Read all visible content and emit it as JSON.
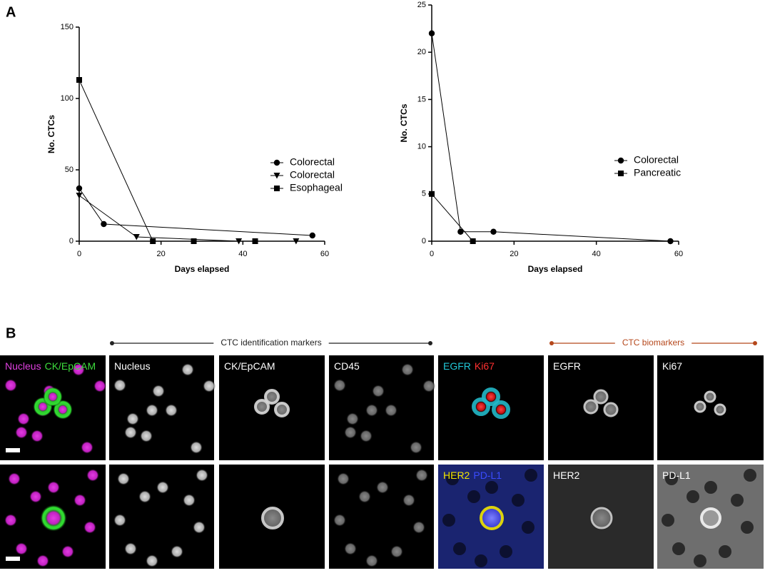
{
  "panel_labels": [
    "A",
    "B"
  ],
  "chart_data": [
    {
      "type": "line",
      "xlabel": "Days elapsed",
      "ylabel": "No. CTCs",
      "xlim": [
        0,
        60
      ],
      "xticks": [
        0,
        20,
        40,
        60
      ],
      "ylim": [
        0,
        150
      ],
      "yticks": [
        0,
        50,
        100,
        150
      ],
      "legend": "right",
      "series": [
        {
          "name": "Colorectal",
          "marker": "circle",
          "color": "#000000",
          "x": [
            0,
            6,
            57
          ],
          "values": [
            37,
            12,
            4
          ]
        },
        {
          "name": "Colorectal",
          "marker": "triangle",
          "color": "#000000",
          "x": [
            0,
            14,
            39,
            53
          ],
          "values": [
            32,
            3,
            0,
            0
          ]
        },
        {
          "name": "Esophageal",
          "marker": "square",
          "color": "#000000",
          "x": [
            0,
            18,
            28,
            43
          ],
          "values": [
            113,
            0,
            0,
            0
          ]
        }
      ]
    },
    {
      "type": "line",
      "xlabel": "Days elapsed",
      "ylabel": "No. CTCs",
      "xlim": [
        0,
        60
      ],
      "xticks": [
        0,
        20,
        40,
        60
      ],
      "ylim": [
        0,
        25
      ],
      "yticks": [
        0,
        5,
        10,
        15,
        20,
        25
      ],
      "legend": "right",
      "series": [
        {
          "name": "Colorectal",
          "marker": "circle",
          "color": "#000000",
          "x": [
            0,
            7,
            15,
            58
          ],
          "values": [
            22,
            1,
            1,
            0
          ]
        },
        {
          "name": "Pancreatic",
          "marker": "square",
          "color": "#000000",
          "x": [
            0,
            10
          ],
          "values": [
            5,
            0
          ]
        }
      ]
    }
  ],
  "panel_b": {
    "brackets": [
      {
        "label": "CTC identification markers",
        "color": "#222222"
      },
      {
        "label": "CTC biomarkers",
        "color": "#b5471b"
      }
    ],
    "rows": [
      [
        {
          "labels": [
            {
              "text": "Nucleus",
              "color": "#e040e0"
            },
            {
              "text": "CK/EpCAM",
              "color": "#3ddc3d"
            }
          ]
        },
        {
          "labels": [
            {
              "text": "Nucleus",
              "color": "#ffffff"
            }
          ]
        },
        {
          "labels": [
            {
              "text": "CK/EpCAM",
              "color": "#ffffff"
            }
          ]
        },
        {
          "labels": [
            {
              "text": "CD45",
              "color": "#ffffff"
            }
          ]
        },
        {
          "labels": [
            {
              "text": "EGFR",
              "color": "#22c8d8"
            },
            {
              "text": "Ki67",
              "color": "#ff3030"
            }
          ]
        },
        {
          "labels": [
            {
              "text": "EGFR",
              "color": "#ffffff"
            }
          ]
        },
        {
          "labels": [
            {
              "text": "Ki67",
              "color": "#ffffff"
            }
          ]
        }
      ],
      [
        {
          "labels": []
        },
        {
          "labels": []
        },
        {
          "labels": []
        },
        {
          "labels": []
        },
        {
          "labels": [
            {
              "text": "HER2",
              "color": "#f2e600"
            },
            {
              "text": "PD-L1",
              "color": "#3a4cff"
            }
          ]
        },
        {
          "labels": [
            {
              "text": "HER2",
              "color": "#ffffff"
            }
          ]
        },
        {
          "labels": [
            {
              "text": "PD-L1",
              "color": "#ffffff"
            }
          ]
        }
      ]
    ]
  }
}
